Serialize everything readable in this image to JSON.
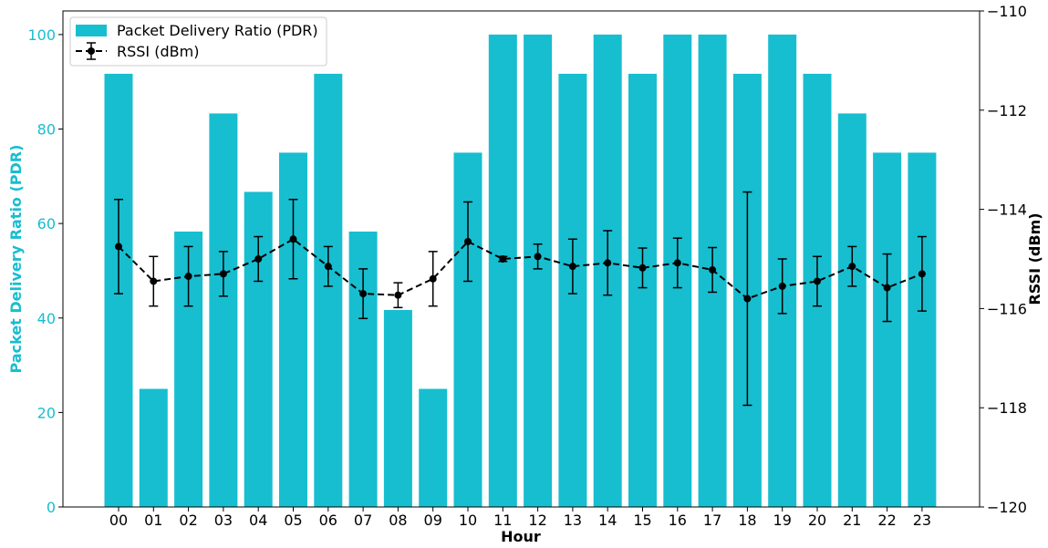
{
  "chart_data": {
    "type": "bar",
    "categories": [
      "00",
      "01",
      "02",
      "03",
      "04",
      "05",
      "06",
      "07",
      "08",
      "09",
      "10",
      "11",
      "12",
      "13",
      "14",
      "15",
      "16",
      "17",
      "18",
      "19",
      "20",
      "21",
      "22",
      "23"
    ],
    "xlabel": "Hour",
    "grid": false,
    "legend": {
      "placement": "top-left",
      "entries": [
        "Packet Delivery Ratio (PDR)",
        "RSSI (dBm)"
      ]
    },
    "bar_series": {
      "name": "Packet Delivery Ratio (PDR)",
      "axis": "left",
      "color": "#17becf",
      "values": [
        91.7,
        25.0,
        58.3,
        83.3,
        66.7,
        75.0,
        91.7,
        58.3,
        41.7,
        25.0,
        75.0,
        100,
        100,
        91.7,
        100,
        91.7,
        100,
        100,
        91.7,
        100,
        91.7,
        83.3,
        75.0,
        75.0
      ]
    },
    "line_series": {
      "name": "RSSI (dBm)",
      "axis": "right",
      "color": "#000000",
      "style": "dashed",
      "marker": "circle",
      "values": [
        -114.75,
        -115.45,
        -115.35,
        -115.3,
        -115.0,
        -114.6,
        -115.15,
        -115.7,
        -115.73,
        -115.4,
        -114.65,
        -115.0,
        -114.95,
        -115.15,
        -115.08,
        -115.18,
        -115.08,
        -115.22,
        -115.8,
        -115.55,
        -115.45,
        -115.15,
        -115.58,
        -115.3
      ],
      "errors": [
        0.95,
        0.5,
        0.6,
        0.45,
        0.45,
        0.8,
        0.4,
        0.5,
        0.25,
        0.55,
        0.8,
        0.05,
        0.25,
        0.55,
        0.65,
        0.4,
        0.5,
        0.45,
        2.15,
        0.55,
        0.5,
        0.4,
        0.68,
        0.75
      ]
    },
    "y_left": {
      "label": "Packet Delivery Ratio (PDR)",
      "lim": [
        0,
        105
      ],
      "ticks": [
        0,
        20,
        40,
        60,
        80,
        100
      ],
      "color": "#17becf"
    },
    "y_right": {
      "label": "RSSI (dBm)",
      "lim": [
        -120,
        -110
      ],
      "ticks": [
        -120,
        -118,
        -116,
        -114,
        -112,
        -110
      ],
      "tick_labels": [
        "−120",
        "−118",
        "−116",
        "−114",
        "−112",
        "−110"
      ],
      "color": "#000000"
    }
  }
}
